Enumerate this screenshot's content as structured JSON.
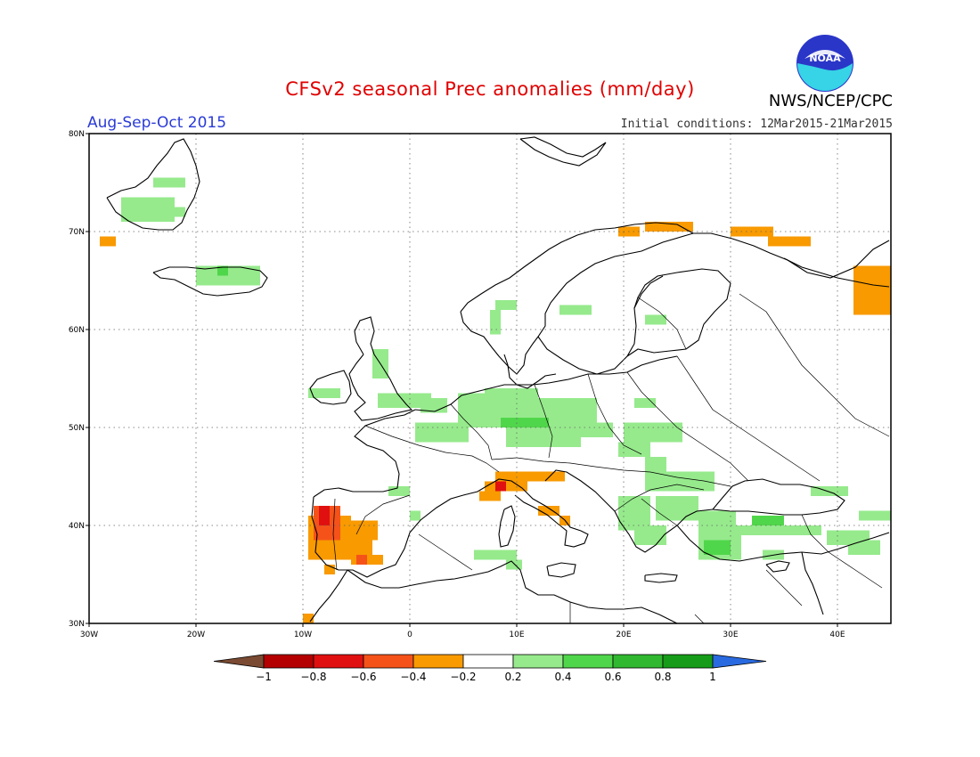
{
  "header": {
    "title": "CFSv2 seasonal Prec anomalies (mm/day)",
    "season": "Aug-Sep-Oct 2015",
    "initial_conditions": "Initial conditions: 12Mar2015-21Mar2015",
    "agency": "NWS/NCEP/CPC",
    "logo_text": "NOAA"
  },
  "map": {
    "region": "Europe",
    "lon_range": [
      -30,
      45
    ],
    "lat_range": [
      30,
      80
    ],
    "lon_ticks": [
      {
        "value": -30,
        "label": "30W"
      },
      {
        "value": -20,
        "label": "20W"
      },
      {
        "value": -10,
        "label": "10W"
      },
      {
        "value": 0,
        "label": "0"
      },
      {
        "value": 10,
        "label": "10E"
      },
      {
        "value": 20,
        "label": "20E"
      },
      {
        "value": 30,
        "label": "30E"
      },
      {
        "value": 40,
        "label": "40E"
      }
    ],
    "lat_ticks": [
      {
        "value": 30,
        "label": "30N"
      },
      {
        "value": 40,
        "label": "40N"
      },
      {
        "value": 50,
        "label": "50N"
      },
      {
        "value": 60,
        "label": "60N"
      },
      {
        "value": 70,
        "label": "70N"
      },
      {
        "value": 80,
        "label": "80N"
      }
    ],
    "grid": "dotted",
    "anomaly_cells": [
      {
        "lon": -29.0,
        "lat": 68.5,
        "w": 1.5,
        "h": 1.0,
        "cat": "dry1"
      },
      {
        "lon": -24.0,
        "lat": 74.5,
        "w": 3.0,
        "h": 1.0,
        "cat": "wet1"
      },
      {
        "lon": -27.0,
        "lat": 71.0,
        "w": 5.0,
        "h": 2.5,
        "cat": "wet1"
      },
      {
        "lon": -23.0,
        "lat": 71.5,
        "w": 2.0,
        "h": 1.0,
        "cat": "wet1"
      },
      {
        "lon": -20.0,
        "lat": 64.5,
        "w": 6.0,
        "h": 2.0,
        "cat": "wet1"
      },
      {
        "lon": -18.0,
        "lat": 65.5,
        "w": 1.0,
        "h": 1.0,
        "cat": "wet2"
      },
      {
        "lon": -9.5,
        "lat": 53.0,
        "w": 3.0,
        "h": 1.0,
        "cat": "wet1"
      },
      {
        "lon": -3.5,
        "lat": 55.0,
        "w": 1.5,
        "h": 3.0,
        "cat": "wet1"
      },
      {
        "lon": -3.0,
        "lat": 52.0,
        "w": 5.0,
        "h": 1.5,
        "cat": "wet1"
      },
      {
        "lon": 1.0,
        "lat": 51.5,
        "w": 2.5,
        "h": 1.5,
        "cat": "wet1"
      },
      {
        "lon": 4.5,
        "lat": 52.5,
        "w": 3.0,
        "h": 1.0,
        "cat": "wet1"
      },
      {
        "lon": 7.0,
        "lat": 53.0,
        "w": 5.0,
        "h": 1.0,
        "cat": "wet1"
      },
      {
        "lon": 8.0,
        "lat": 62.0,
        "w": 2.0,
        "h": 1.0,
        "cat": "wet1"
      },
      {
        "lon": 7.5,
        "lat": 59.5,
        "w": 1.0,
        "h": 2.5,
        "cat": "wet1"
      },
      {
        "lon": 14.0,
        "lat": 61.5,
        "w": 3.0,
        "h": 1.0,
        "cat": "wet1"
      },
      {
        "lon": 22.0,
        "lat": 60.5,
        "w": 2.0,
        "h": 1.0,
        "cat": "wet1"
      },
      {
        "lon": 21.0,
        "lat": 52.0,
        "w": 2.0,
        "h": 1.0,
        "cat": "wet1"
      },
      {
        "lon": 0.5,
        "lat": 48.5,
        "w": 5.0,
        "h": 2.0,
        "cat": "wet1"
      },
      {
        "lon": 4.5,
        "lat": 50.0,
        "w": 13.0,
        "h": 3.0,
        "cat": "wet1"
      },
      {
        "lon": 8.5,
        "lat": 50.0,
        "w": 4.5,
        "h": 1.0,
        "cat": "wet2"
      },
      {
        "lon": 9.0,
        "lat": 48.0,
        "w": 7.0,
        "h": 2.0,
        "cat": "wet1"
      },
      {
        "lon": 14.0,
        "lat": 49.0,
        "w": 5.0,
        "h": 1.5,
        "cat": "wet1"
      },
      {
        "lon": 20.0,
        "lat": 48.5,
        "w": 5.5,
        "h": 2.0,
        "cat": "wet1"
      },
      {
        "lon": 19.5,
        "lat": 47.0,
        "w": 3.0,
        "h": 1.5,
        "cat": "wet1"
      },
      {
        "lon": 22.0,
        "lat": 43.5,
        "w": 6.5,
        "h": 2.0,
        "cat": "wet1"
      },
      {
        "lon": 22.0,
        "lat": 45.5,
        "w": 2.0,
        "h": 1.5,
        "cat": "wet1"
      },
      {
        "lon": 19.5,
        "lat": 39.5,
        "w": 3.0,
        "h": 3.5,
        "cat": "wet1"
      },
      {
        "lon": 21.0,
        "lat": 38.0,
        "w": 3.0,
        "h": 2.0,
        "cat": "wet1"
      },
      {
        "lon": 23.0,
        "lat": 40.5,
        "w": 4.0,
        "h": 2.5,
        "cat": "wet1"
      },
      {
        "lon": 27.0,
        "lat": 39.5,
        "w": 3.5,
        "h": 2.0,
        "cat": "wet1"
      },
      {
        "lon": 27.0,
        "lat": 36.5,
        "w": 4.0,
        "h": 3.0,
        "cat": "wet1"
      },
      {
        "lon": 27.5,
        "lat": 37.0,
        "w": 2.5,
        "h": 1.5,
        "cat": "wet2"
      },
      {
        "lon": 30.0,
        "lat": 39.0,
        "w": 8.5,
        "h": 1.0,
        "cat": "wet1"
      },
      {
        "lon": 32.0,
        "lat": 40.0,
        "w": 3.0,
        "h": 1.0,
        "cat": "wet2"
      },
      {
        "lon": 33.0,
        "lat": 36.5,
        "w": 2.0,
        "h": 1.0,
        "cat": "wet1"
      },
      {
        "lon": 39.0,
        "lat": 38.0,
        "w": 4.0,
        "h": 1.5,
        "cat": "wet1"
      },
      {
        "lon": 41.0,
        "lat": 37.0,
        "w": 3.0,
        "h": 1.5,
        "cat": "wet1"
      },
      {
        "lon": 42.0,
        "lat": 40.5,
        "w": 3.0,
        "h": 1.0,
        "cat": "wet1"
      },
      {
        "lon": 37.5,
        "lat": 43.0,
        "w": 3.5,
        "h": 1.0,
        "cat": "wet1"
      },
      {
        "lon": -2.0,
        "lat": 43.0,
        "w": 2.0,
        "h": 1.0,
        "cat": "wet1"
      },
      {
        "lon": 0.0,
        "lat": 40.5,
        "w": 1.0,
        "h": 1.0,
        "cat": "wet1"
      },
      {
        "lon": 6.0,
        "lat": 36.5,
        "w": 4.0,
        "h": 1.0,
        "cat": "wet1"
      },
      {
        "lon": 9.0,
        "lat": 35.5,
        "w": 1.5,
        "h": 1.0,
        "cat": "wet1"
      },
      {
        "lon": 8.0,
        "lat": 44.5,
        "w": 6.5,
        "h": 1.0,
        "cat": "dry1"
      },
      {
        "lon": 7.0,
        "lat": 43.5,
        "w": 4.0,
        "h": 1.0,
        "cat": "dry1"
      },
      {
        "lon": 6.5,
        "lat": 42.5,
        "w": 2.0,
        "h": 1.0,
        "cat": "dry1"
      },
      {
        "lon": 8.0,
        "lat": 43.5,
        "w": 1.0,
        "h": 1.0,
        "cat": "dry3"
      },
      {
        "lon": 12.0,
        "lat": 41.0,
        "w": 2.0,
        "h": 1.0,
        "cat": "dry1"
      },
      {
        "lon": 14.0,
        "lat": 40.0,
        "w": 1.0,
        "h": 1.0,
        "cat": "dry1"
      },
      {
        "lon": -9.5,
        "lat": 36.5,
        "w": 4.0,
        "h": 4.5,
        "cat": "dry1"
      },
      {
        "lon": -6.0,
        "lat": 38.5,
        "w": 3.0,
        "h": 2.0,
        "cat": "dry1"
      },
      {
        "lon": -6.0,
        "lat": 36.5,
        "w": 2.5,
        "h": 2.0,
        "cat": "dry1"
      },
      {
        "lon": -5.5,
        "lat": 36.0,
        "w": 3.0,
        "h": 1.0,
        "cat": "dry1"
      },
      {
        "lon": -9.0,
        "lat": 38.5,
        "w": 2.5,
        "h": 3.5,
        "cat": "dry2"
      },
      {
        "lon": -8.5,
        "lat": 40.0,
        "w": 1.0,
        "h": 2.0,
        "cat": "dry3"
      },
      {
        "lon": -5.0,
        "lat": 36.0,
        "w": 1.0,
        "h": 1.0,
        "cat": "dry2"
      },
      {
        "lon": -8.0,
        "lat": 35.0,
        "w": 1.0,
        "h": 1.0,
        "cat": "dry1"
      },
      {
        "lon": -10.0,
        "lat": 30.0,
        "w": 1.0,
        "h": 1.0,
        "cat": "dry1"
      },
      {
        "lon": 19.5,
        "lat": 69.5,
        "w": 2.0,
        "h": 1.0,
        "cat": "dry1"
      },
      {
        "lon": 22.0,
        "lat": 70.0,
        "w": 4.5,
        "h": 1.0,
        "cat": "dry1"
      },
      {
        "lon": 30.0,
        "lat": 69.5,
        "w": 4.0,
        "h": 1.0,
        "cat": "dry1"
      },
      {
        "lon": 33.5,
        "lat": 68.5,
        "w": 4.0,
        "h": 1.0,
        "cat": "dry1"
      },
      {
        "lon": 41.5,
        "lat": 61.5,
        "w": 3.5,
        "h": 5.0,
        "cat": "dry1"
      }
    ]
  },
  "colorbar": {
    "categories": {
      "dry_extreme": "#7a4a32",
      "dry4": "#b40000",
      "dry3": "#e01010",
      "dry2": "#f5521a",
      "dry1": "#f89a00",
      "neutral": "#ffffff",
      "wet1": "#96ea8c",
      "wet2": "#50d64a",
      "wet3": "#30b830",
      "wet4": "#169c18",
      "wet_extreme": "#2a6ae0"
    },
    "segments": [
      "dry4",
      "dry3",
      "dry2",
      "dry1",
      "neutral",
      "wet1",
      "wet2",
      "wet3",
      "wet4"
    ],
    "tick_labels": [
      "−1",
      "−0.8",
      "−0.6",
      "−0.4",
      "−0.2",
      "0.2",
      "0.4",
      "0.6",
      "0.8",
      "1"
    ]
  }
}
